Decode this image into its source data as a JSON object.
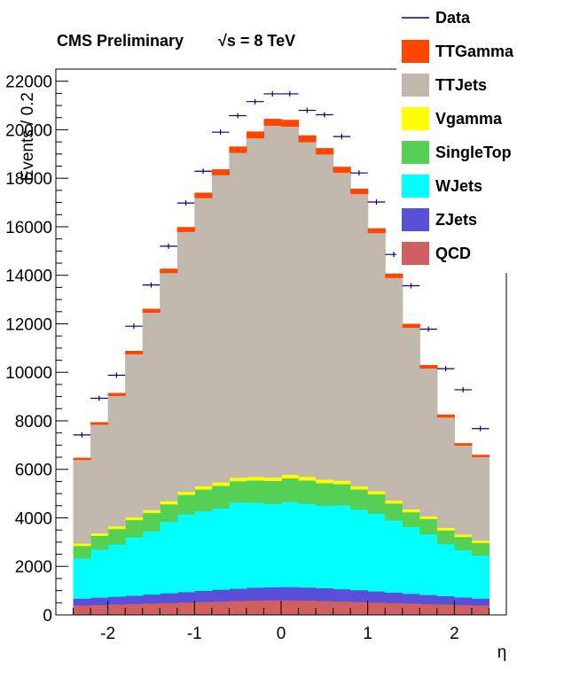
{
  "chart_data": {
    "type": "bar",
    "stacked": true,
    "title": "CMS Preliminary",
    "energy_label": "√s = 8 TeV",
    "xlabel": "η",
    "ylabel": "Events / 0.2",
    "xlim": [
      -2.4,
      2.4
    ],
    "ylim": [
      0,
      22500
    ],
    "xticks": [
      -2,
      -1,
      0,
      1,
      2
    ],
    "yticks": [
      0,
      2000,
      4000,
      6000,
      8000,
      10000,
      12000,
      14000,
      16000,
      18000,
      20000,
      22000
    ],
    "bin_width": 0.2,
    "bin_low_edges": [
      -2.4,
      -2.2,
      -2.0,
      -1.8,
      -1.6,
      -1.4,
      -1.2,
      -1.0,
      -0.8,
      -0.6,
      -0.4,
      -0.2,
      0.0,
      0.2,
      0.4,
      0.6,
      0.8,
      1.0,
      1.2,
      1.4,
      1.6,
      1.8,
      2.0,
      2.2
    ],
    "series": [
      {
        "name": "QCD",
        "color": "#d06060",
        "values": [
          400,
          420,
          440,
          460,
          480,
          500,
          520,
          540,
          560,
          580,
          600,
          610,
          610,
          600,
          580,
          560,
          540,
          520,
          500,
          480,
          460,
          440,
          420,
          400
        ]
      },
      {
        "name": "ZJets",
        "color": "#5a4fd8",
        "values": [
          280,
          300,
          320,
          340,
          370,
          400,
          430,
          460,
          490,
          510,
          530,
          540,
          550,
          540,
          530,
          510,
          490,
          460,
          430,
          400,
          370,
          340,
          310,
          280
        ]
      },
      {
        "name": "WJets",
        "color": "#00ffff",
        "values": [
          1650,
          1980,
          2150,
          2400,
          2600,
          2950,
          3200,
          3280,
          3350,
          3550,
          3500,
          3430,
          3500,
          3450,
          3400,
          3450,
          3320,
          3200,
          2970,
          2750,
          2500,
          2150,
          1950,
          1770
        ]
      },
      {
        "name": "SingleTop",
        "color": "#55d055",
        "values": [
          520,
          570,
          640,
          720,
          760,
          720,
          810,
          900,
          930,
          880,
          920,
          950,
          980,
          960,
          930,
          880,
          830,
          800,
          700,
          610,
          630,
          560,
          540,
          520
        ]
      },
      {
        "name": "Vgamma",
        "color": "#ffff00",
        "values": [
          100,
          105,
          110,
          115,
          120,
          125,
          130,
          135,
          140,
          145,
          150,
          150,
          150,
          150,
          145,
          140,
          135,
          130,
          125,
          120,
          115,
          110,
          105,
          100
        ]
      },
      {
        "name": "TTJets",
        "color": "#c0b8ac",
        "values": [
          3450,
          4480,
          5380,
          6720,
          8140,
          9410,
          10710,
          11880,
          12670,
          13395,
          13960,
          14500,
          14350,
          13800,
          13410,
          12705,
          12045,
          10640,
          9175,
          7490,
          6095,
          4550,
          3665,
          3450
        ]
      },
      {
        "name": "TTGamma",
        "color": "#ff4500",
        "values": [
          80,
          90,
          110,
          130,
          150,
          170,
          190,
          210,
          230,
          250,
          270,
          270,
          270,
          270,
          250,
          230,
          210,
          190,
          170,
          150,
          130,
          110,
          90,
          80
        ]
      }
    ],
    "data": {
      "name": "Data",
      "color": "#000080",
      "values": [
        7420,
        8930,
        9880,
        11900,
        13600,
        15200,
        16980,
        18290,
        19900,
        20580,
        21160,
        21480,
        21480,
        20800,
        20620,
        19720,
        18220,
        17020,
        14860,
        13570,
        11780,
        10150,
        9280,
        7680
      ]
    },
    "legend": {
      "position": "top-right",
      "entries": [
        "Data",
        "TTGamma",
        "TTJets",
        "Vgamma",
        "SingleTop",
        "WJets",
        "ZJets",
        "QCD"
      ]
    }
  }
}
